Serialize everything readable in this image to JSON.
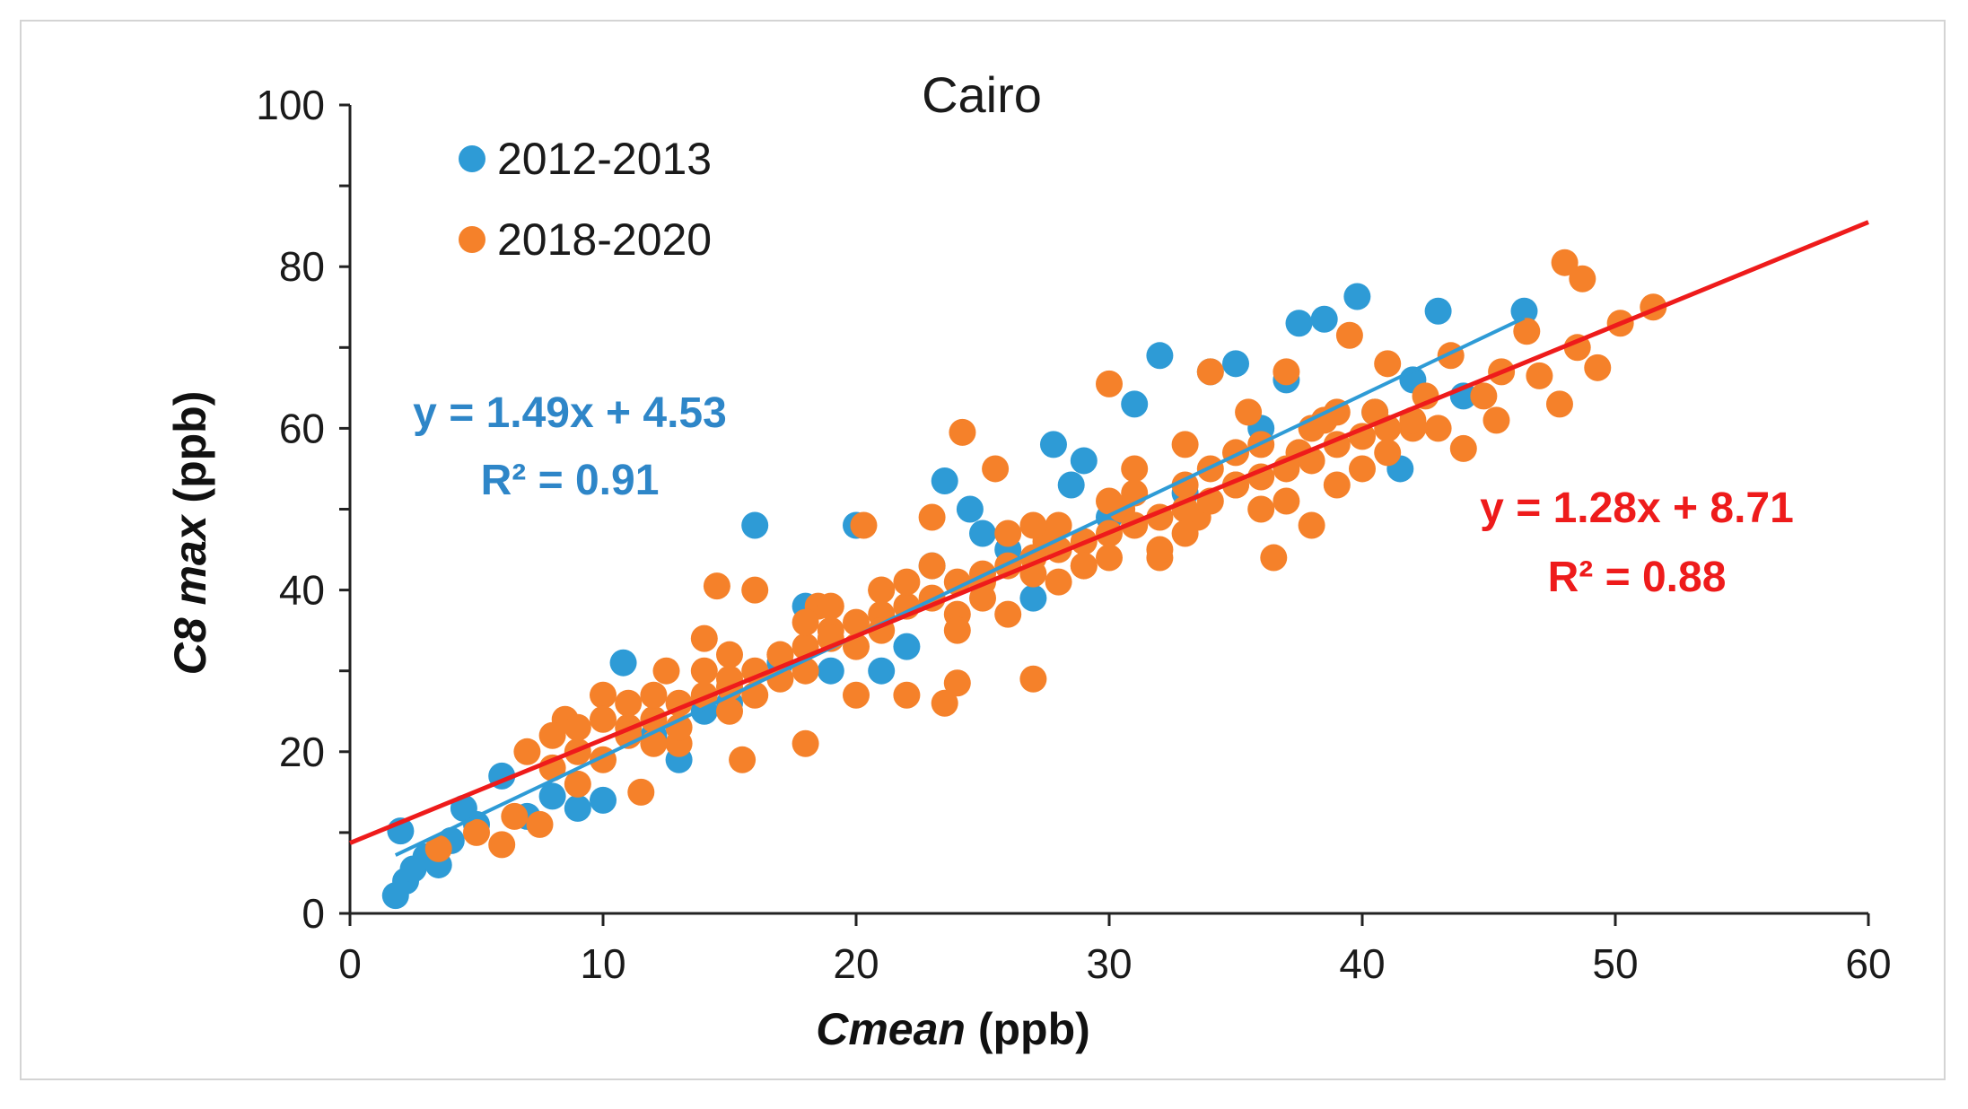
{
  "chart_data": {
    "type": "scatter",
    "title": "Cairo",
    "xlabel": "Cmean (ppb)",
    "xlabel_italic": "Cmean",
    "xlabel_unit": " (ppb)",
    "ylabel": "C8 max (ppb)",
    "ylabel_italic": "C8 max",
    "ylabel_unit": " (ppb)",
    "xlim": [
      0,
      60
    ],
    "ylim": [
      0,
      100
    ],
    "xticks": [
      0,
      10,
      20,
      30,
      40,
      50,
      60
    ],
    "yticks": [
      0,
      20,
      40,
      60,
      80,
      100
    ],
    "legend_position": "top-left",
    "series": [
      {
        "name": "2012-2013",
        "color": "#2e9bd6",
        "trend_color": "#2e9bd6",
        "trend": {
          "slope": 1.49,
          "intercept": 4.53,
          "x_range": [
            1.8,
            46.4
          ]
        },
        "equation": "y = 1.49x + 4.53",
        "r2_label": "R² = 0.91",
        "points": [
          [
            1.8,
            2.2
          ],
          [
            2.0,
            10.2
          ],
          [
            2.2,
            4.0
          ],
          [
            2.5,
            5.5
          ],
          [
            3.0,
            7.0
          ],
          [
            3.5,
            6.0
          ],
          [
            4.0,
            9.0
          ],
          [
            4.5,
            13.0
          ],
          [
            5.0,
            11.0
          ],
          [
            6.0,
            17.0
          ],
          [
            7.0,
            12.0
          ],
          [
            8.0,
            14.5
          ],
          [
            9.0,
            13.0
          ],
          [
            10.0,
            14.0
          ],
          [
            10.8,
            31.0
          ],
          [
            12.0,
            22.0
          ],
          [
            13.0,
            19.0
          ],
          [
            14.0,
            25.0
          ],
          [
            15.0,
            26.0
          ],
          [
            16.0,
            48.0
          ],
          [
            17.0,
            31.0
          ],
          [
            18.0,
            38.0
          ],
          [
            19.0,
            30.0
          ],
          [
            20.0,
            48.0
          ],
          [
            21.0,
            30.0
          ],
          [
            22.0,
            33.0
          ],
          [
            23.0,
            43.0
          ],
          [
            23.5,
            53.5
          ],
          [
            24.5,
            50.0
          ],
          [
            25.0,
            47.0
          ],
          [
            26.0,
            45.0
          ],
          [
            27.0,
            39.0
          ],
          [
            27.8,
            58.0
          ],
          [
            28.5,
            53.0
          ],
          [
            29.0,
            56.0
          ],
          [
            30.0,
            49.0
          ],
          [
            31.0,
            63.0
          ],
          [
            32.0,
            69.0
          ],
          [
            33.0,
            52.0
          ],
          [
            34.0,
            67.0
          ],
          [
            35.0,
            68.0
          ],
          [
            36.0,
            60.0
          ],
          [
            37.0,
            66.0
          ],
          [
            37.5,
            73.0
          ],
          [
            38.5,
            73.5
          ],
          [
            39.8,
            76.3
          ],
          [
            40.5,
            62.0
          ],
          [
            41.5,
            55.0
          ],
          [
            42.0,
            66.0
          ],
          [
            43.0,
            74.5
          ],
          [
            44.0,
            64.0
          ],
          [
            46.4,
            74.5
          ]
        ]
      },
      {
        "name": "2018-2020",
        "color": "#f5812a",
        "trend_color": "#ee1b1b",
        "trend": {
          "slope": 1.28,
          "intercept": 8.71,
          "x_range": [
            0,
            60
          ]
        },
        "equation": "y = 1.28x + 8.71",
        "r2_label": "R² = 0.88",
        "points": [
          [
            3.5,
            8.0
          ],
          [
            5.0,
            10.0
          ],
          [
            6.0,
            8.5
          ],
          [
            6.5,
            12.0
          ],
          [
            7.0,
            20.0
          ],
          [
            7.5,
            11.0
          ],
          [
            8.5,
            24.0
          ],
          [
            9.0,
            16.0
          ],
          [
            10.0,
            27.0
          ],
          [
            11.0,
            23.0
          ],
          [
            11.5,
            15.0
          ],
          [
            12.5,
            30.0
          ],
          [
            13.0,
            21.0
          ],
          [
            14.0,
            34.0
          ],
          [
            14.5,
            40.5
          ],
          [
            15.0,
            28.0
          ],
          [
            15.5,
            19.0
          ],
          [
            16.0,
            40.0
          ],
          [
            17.0,
            32.0
          ],
          [
            18.0,
            21.0
          ],
          [
            18.5,
            38.0
          ],
          [
            19.0,
            35.0
          ],
          [
            20.0,
            27.0
          ],
          [
            20.3,
            48.0
          ],
          [
            21.0,
            40.0
          ],
          [
            22.0,
            27.0
          ],
          [
            23.0,
            49.0
          ],
          [
            23.5,
            26.0
          ],
          [
            24.0,
            28.5
          ],
          [
            24.2,
            59.5
          ],
          [
            25.0,
            41.0
          ],
          [
            25.5,
            55.0
          ],
          [
            26.0,
            37.0
          ],
          [
            27.0,
            29.0
          ],
          [
            27.5,
            46.0
          ],
          [
            28.0,
            48.0
          ],
          [
            29.0,
            43.0
          ],
          [
            30.0,
            65.5
          ],
          [
            30.5,
            50.0
          ],
          [
            31.0,
            55.0
          ],
          [
            32.0,
            44.0
          ],
          [
            33.0,
            58.0
          ],
          [
            33.5,
            49.0
          ],
          [
            34.0,
            67.0
          ],
          [
            35.0,
            53.0
          ],
          [
            35.5,
            62.0
          ],
          [
            36.5,
            44.0
          ],
          [
            37.0,
            67.0
          ],
          [
            37.5,
            57.0
          ],
          [
            38.0,
            48.0
          ],
          [
            38.5,
            61.0
          ],
          [
            39.5,
            71.5
          ],
          [
            40.5,
            62.0
          ],
          [
            41.0,
            68.0
          ],
          [
            42.0,
            60.0
          ],
          [
            42.5,
            64.0
          ],
          [
            43.0,
            60.0
          ],
          [
            43.5,
            69.0
          ],
          [
            44.0,
            57.5
          ],
          [
            44.8,
            64.0
          ],
          [
            45.3,
            61.0
          ],
          [
            45.5,
            67.0
          ],
          [
            46.5,
            72.0
          ],
          [
            47.0,
            66.5
          ],
          [
            47.8,
            63.0
          ],
          [
            48.0,
            80.5
          ],
          [
            48.5,
            70.0
          ],
          [
            48.7,
            78.5
          ],
          [
            49.3,
            67.5
          ],
          [
            50.2,
            73.0
          ],
          [
            51.5,
            75.0
          ]
        ]
      }
    ]
  }
}
